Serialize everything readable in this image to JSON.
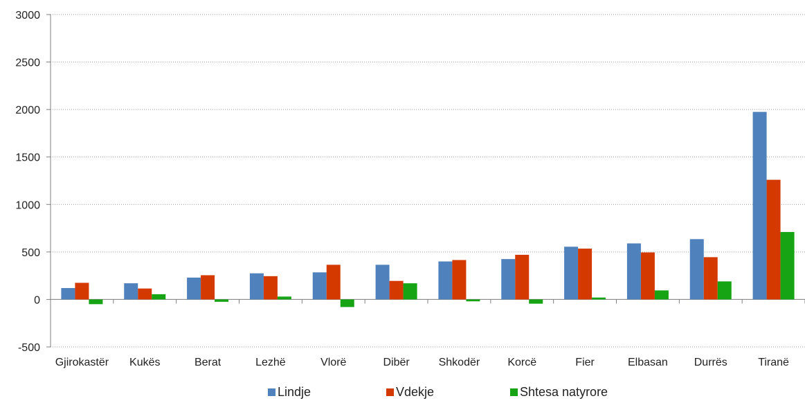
{
  "chart_data": {
    "type": "bar",
    "categories": [
      "Gjirokastër",
      "Kukës",
      "Berat",
      "Lezhë",
      "Vlorë",
      "Dibër",
      "Shkodër",
      "Korcë",
      "Fier",
      "Elbasan",
      "Durrës",
      "Tiranë"
    ],
    "series": [
      {
        "name": "Lindje",
        "color": "#4F81BD",
        "values": [
          120,
          170,
          230,
          275,
          285,
          365,
          400,
          425,
          555,
          590,
          635,
          1975
        ]
      },
      {
        "name": "Vdekje",
        "color": "#D43A00",
        "values": [
          175,
          115,
          255,
          245,
          365,
          195,
          415,
          470,
          535,
          495,
          445,
          1260
        ]
      },
      {
        "name": "Shtesa natyrore",
        "color": "#16A314",
        "values": [
          -50,
          55,
          -25,
          30,
          -80,
          170,
          -20,
          -45,
          20,
          95,
          190,
          710
        ]
      }
    ],
    "ylim": [
      -500,
      3000
    ],
    "yticks": [
      3000,
      2500,
      2000,
      1500,
      1000,
      500,
      0,
      -500
    ],
    "grid": true,
    "legend_position": "bottom"
  }
}
